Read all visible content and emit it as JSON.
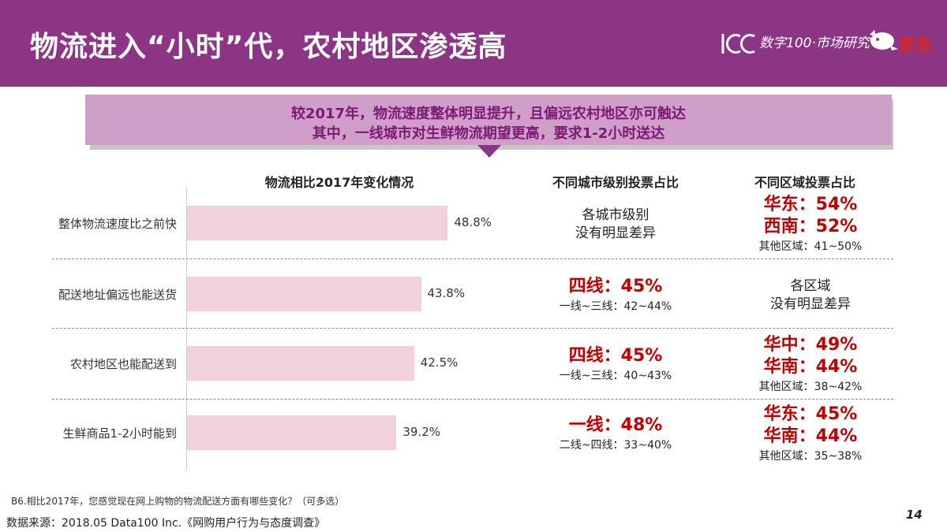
{
  "header": {
    "title": "物流进入“小时”代，农村地区渗透高",
    "logo_text": "数字100·市场研究",
    "logo_jd": "京东",
    "logo_100": "100"
  },
  "banner": {
    "line1": "较2017年，物流速度整体明显提升，且偏远农村地区亦可触达",
    "line2": "其中，一线城市对生鲜物流期望更高，要求1-2小时送达"
  },
  "columns": {
    "chart": "物流相比2017年变化情况",
    "city": "不同城市级别投票占比",
    "region": "不同区域投票占比"
  },
  "rows": [
    {
      "city": {
        "plain": [
          "各城市级别",
          "没有明显差异"
        ],
        "big": [],
        "small": ""
      },
      "region": {
        "plain": [],
        "big": [
          "华东：54%",
          "西南：52%"
        ],
        "small": "其他区域：41~50%"
      }
    },
    {
      "city": {
        "plain": [],
        "big": [
          "四线：45%"
        ],
        "small": "一线~三线：42~44%"
      },
      "region": {
        "plain": [
          "各区域",
          "没有明显差异"
        ],
        "big": [],
        "small": ""
      }
    },
    {
      "city": {
        "plain": [],
        "big": [
          "四线：45%"
        ],
        "small": "一线~三线：40~43%"
      },
      "region": {
        "plain": [],
        "big": [
          "华中：49%",
          "华南：44%"
        ],
        "small": "其他区域：38~42%"
      }
    },
    {
      "city": {
        "plain": [],
        "big": [
          "一线：48%"
        ],
        "small": "二线~四线：33~40%"
      },
      "region": {
        "plain": [],
        "big": [
          "华东：45%",
          "华南：44%"
        ],
        "small": "其他区域：35~38%"
      }
    }
  ],
  "chart_data": {
    "type": "bar",
    "orientation": "horizontal",
    "title": "物流相比2017年变化情况",
    "categories": [
      "整体物流速度比之前快",
      "配送地址偏远也能送货",
      "农村地区也能配送到",
      "生鲜商品1-2小时能到"
    ],
    "values": [
      48.8,
      43.8,
      42.5,
      39.2
    ],
    "value_labels": [
      "48.8%",
      "43.8%",
      "42.5%",
      "39.2%"
    ],
    "unit": "%",
    "bar_color": "#f2d2da",
    "xlim": [
      0,
      100
    ]
  },
  "footnote": "B6.相比2017年，您感觉现在网上购物的物流配送方面有哪些变化？（可多选）",
  "source": "数据来源：2018.05 Data100 Inc.《网购用户行为与态度调查》",
  "page_number": "14",
  "colors": {
    "header": "#8c3585",
    "banner": "#cf9fc9",
    "banner_text": "#7d1874",
    "highlight": "#c00000"
  }
}
